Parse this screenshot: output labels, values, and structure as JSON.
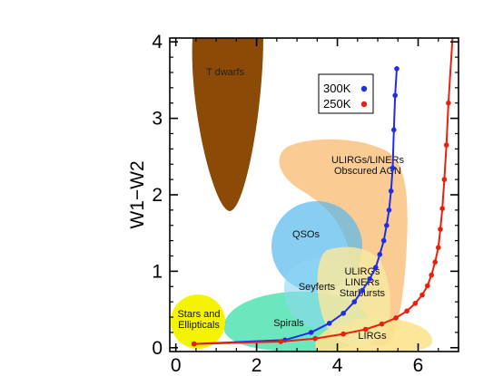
{
  "chart_data": {
    "type": "scatter",
    "title": "",
    "xlabel": "",
    "ylabel": "W1−W2",
    "xlim": [
      -0.15,
      7.0
    ],
    "ylim": [
      -0.05,
      4.05
    ],
    "x_ticks": [
      0,
      2,
      4,
      6
    ],
    "y_ticks": [
      0,
      1,
      2,
      3,
      4
    ],
    "x_tick_labels": [
      "0",
      "2",
      "4",
      "6"
    ],
    "y_tick_labels": [
      "0",
      "1",
      "2",
      "3",
      "4"
    ],
    "legend_placement": "top-right",
    "regions": [
      {
        "label": "T dwarfs",
        "color": "#8b4a06"
      },
      {
        "label": "ULIRGs/LINERs\nObscured AGN",
        "color": "#f9bf78"
      },
      {
        "label": "QSOs",
        "color": "#55b8ec"
      },
      {
        "label": "Seyferts",
        "color": "#8cd7f2"
      },
      {
        "label": "ULIRGs\nLINERs\nStarbursts",
        "color": "#f6e7a0"
      },
      {
        "label": "Spirals",
        "color": "#52e2b0"
      },
      {
        "label": "LIRGs",
        "color": "#fbe38f"
      },
      {
        "label": "Stars and\nEllipticals",
        "color": "#f4f400"
      }
    ],
    "series": [
      {
        "name": "300K",
        "color": "#1f2ee6",
        "x": [
          0.45,
          2.7,
          3.35,
          3.8,
          4.15,
          4.42,
          4.62,
          4.8,
          4.95,
          5.05,
          5.15,
          5.22,
          5.28,
          5.33,
          5.37,
          5.4,
          5.43,
          5.47
        ],
        "y": [
          0.05,
          0.1,
          0.2,
          0.32,
          0.45,
          0.6,
          0.75,
          0.9,
          1.05,
          1.22,
          1.4,
          1.6,
          1.8,
          2.05,
          2.35,
          2.85,
          3.3,
          3.65
        ]
      },
      {
        "name": "250K",
        "color": "#e8200c",
        "x": [
          0.45,
          2.6,
          3.45,
          4.15,
          4.7,
          5.1,
          5.45,
          5.72,
          5.93,
          6.1,
          6.23,
          6.33,
          6.42,
          6.5,
          6.55,
          6.6,
          6.65,
          6.7,
          6.75
        ],
        "y": [
          0.05,
          0.08,
          0.12,
          0.18,
          0.24,
          0.31,
          0.39,
          0.48,
          0.58,
          0.69,
          0.81,
          0.95,
          1.12,
          1.31,
          1.55,
          1.82,
          2.2,
          2.65,
          3.2
        ]
      }
    ]
  }
}
